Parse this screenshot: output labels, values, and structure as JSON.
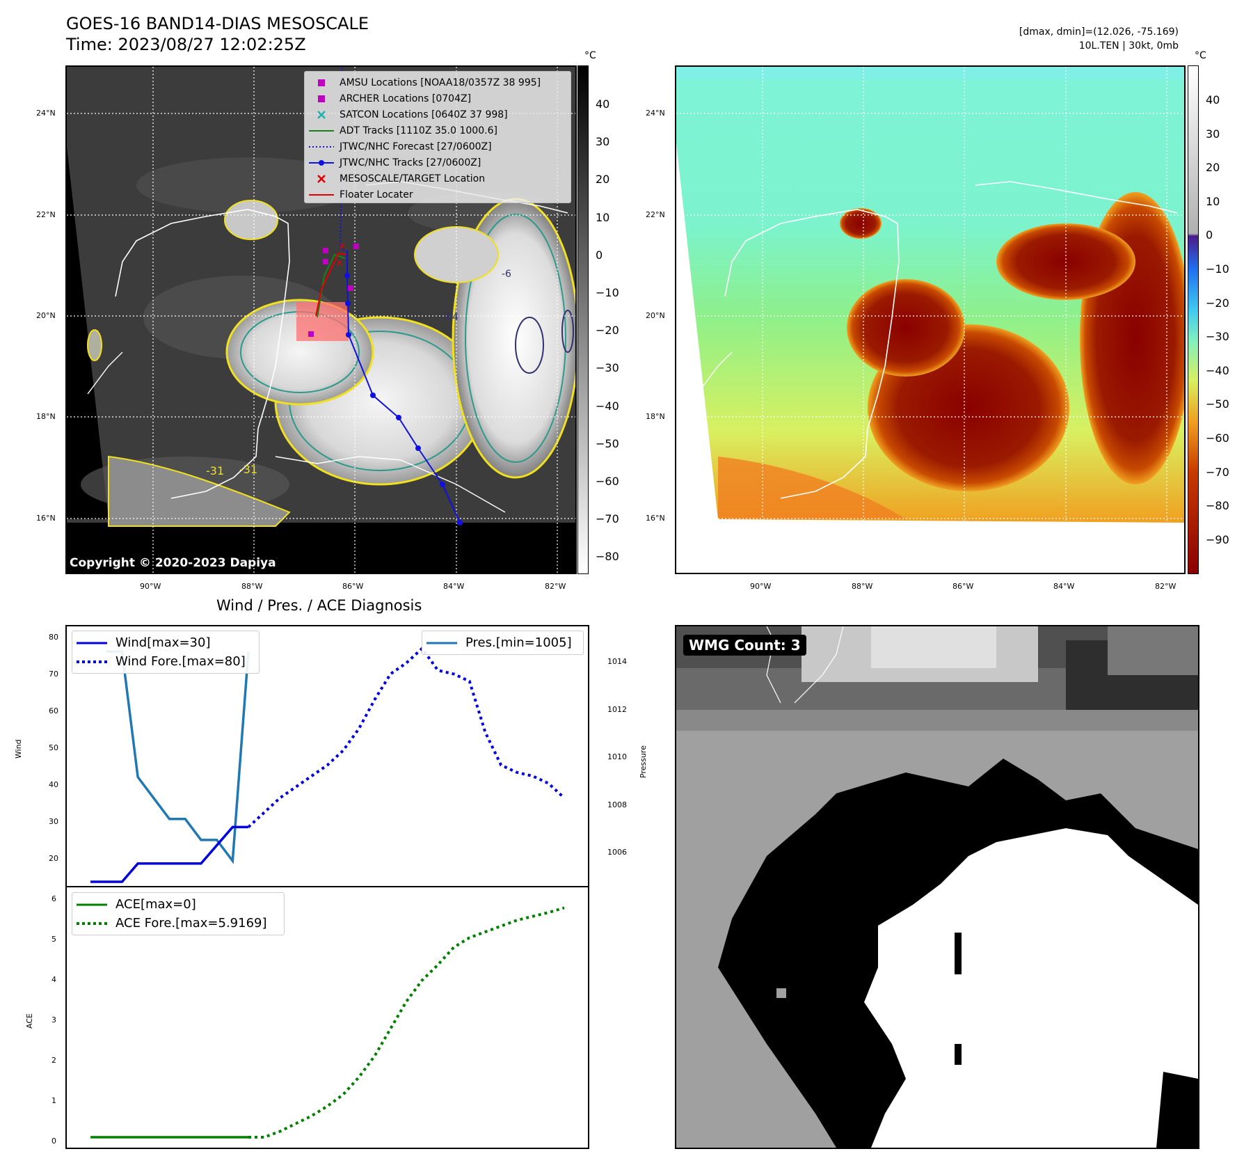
{
  "header": {
    "title": "GOES-16 BAND14-DIAS MESOSCALE",
    "time": "Time: 2023/08/27 12:02:25Z",
    "dmax_dmin": "[dmax, dmin]=(12.026, -75.169)",
    "storm_info": "10L.TEN | 30kt, 0mb"
  },
  "map_axes": {
    "lat_labels": [
      "24°N",
      "22°N",
      "20°N",
      "18°N",
      "16°N"
    ],
    "lon_labels": [
      "90°W",
      "88°W",
      "86°W",
      "84°W",
      "82°W"
    ]
  },
  "left_map": {
    "copyright": "Copyright © 2020-2023 Dapiya",
    "colorbar_unit": "°C",
    "colorbar_ticks": [
      "40",
      "30",
      "20",
      "10",
      "0",
      "−10",
      "−20",
      "−30",
      "−40",
      "−50",
      "−60",
      "−70",
      "−80"
    ],
    "contour_labels": [
      "-31",
      "-31",
      "-64",
      "-6"
    ],
    "legend": [
      {
        "label": "AMSU Locations [NOAA18/0357Z 38 995]",
        "marker": "square",
        "color": "#c000c0"
      },
      {
        "label": "ARCHER Locations [0704Z]",
        "marker": "square",
        "color": "#c000c0"
      },
      {
        "label": "SATCON Locations [0640Z 37 998]",
        "marker": "x",
        "color": "#20b0b0"
      },
      {
        "label": "ADT Tracks [1110Z 35.0 1000.6]",
        "marker": "line",
        "color": "#1a7f1a"
      },
      {
        "label": "JTWC/NHC Forecast [27/0600Z]",
        "marker": "dotted",
        "color": "#1010e0"
      },
      {
        "label": "JTWC/NHC Tracks [27/0600Z]",
        "marker": "line-dot",
        "color": "#1010e0"
      },
      {
        "label": "MESOSCALE/TARGET Location",
        "marker": "x",
        "color": "#e00000"
      },
      {
        "label": "Floater Locater",
        "marker": "line",
        "color": "#e00000"
      }
    ]
  },
  "right_map": {
    "colorbar_unit": "°C",
    "colorbar_ticks": [
      "40",
      "30",
      "20",
      "10",
      "0",
      "−10",
      "−20",
      "−30",
      "−40",
      "−50",
      "−60",
      "−70",
      "−80",
      "−90"
    ]
  },
  "wind_panel": {
    "title": "Wind / Pres. / ACE Diagnosis",
    "ylabel_left": "Wind",
    "ylabel_right": "Pressure",
    "wind_ticks": [
      "80",
      "70",
      "60",
      "50",
      "40",
      "30",
      "20"
    ],
    "pres_ticks": [
      "1014",
      "1012",
      "1010",
      "1008",
      "1006"
    ],
    "legend_left": [
      {
        "label": "Wind[max=30]",
        "style": "solid",
        "color": "#0000e0"
      },
      {
        "label": "Wind Fore.[max=80]",
        "style": "dotted",
        "color": "#0000e0"
      }
    ],
    "legend_right": [
      {
        "label": "Pres.[min=1005]",
        "style": "solid",
        "color": "#1f77b4"
      }
    ]
  },
  "ace_panel": {
    "ylabel": "ACE",
    "ace_ticks": [
      "6",
      "5",
      "4",
      "3",
      "2",
      "1",
      "0"
    ],
    "legend": [
      {
        "label": "ACE[max=0]",
        "style": "solid",
        "color": "#007f00"
      },
      {
        "label": "ACE Fore.[max=5.9169]",
        "style": "dotted",
        "color": "#007f00"
      }
    ]
  },
  "wmg_panel": {
    "badge": "WMG Count: 3"
  },
  "chart_data": [
    {
      "type": "line",
      "name": "Wind / Pres. / ACE Diagnosis — wind",
      "x": [
        0,
        1,
        2,
        3,
        4,
        5,
        6,
        7,
        8,
        9,
        10,
        11,
        12,
        13,
        14,
        15,
        16,
        17,
        18,
        19,
        20,
        21,
        22,
        23,
        24,
        25,
        26,
        27,
        28,
        29,
        30
      ],
      "series": [
        {
          "name": "Wind[max=30]",
          "style": "solid",
          "x": [
            0,
            2,
            3,
            7,
            9,
            10
          ],
          "values": [
            15,
            15,
            20,
            20,
            30,
            30
          ]
        },
        {
          "name": "Wind Fore.[max=80]",
          "style": "dotted",
          "x": [
            10,
            11,
            12,
            13,
            14,
            15,
            16,
            17,
            18,
            19,
            20,
            21,
            22,
            23,
            24,
            25,
            26,
            27,
            28,
            29,
            30
          ],
          "values": [
            30,
            34,
            38,
            41,
            44,
            47,
            51,
            57,
            65,
            72,
            75,
            79,
            73,
            72,
            70,
            56,
            47,
            45,
            44,
            42,
            38
          ]
        }
      ],
      "ylim": [
        15,
        82
      ]
    },
    {
      "type": "line",
      "name": "Pressure",
      "series": [
        {
          "name": "Pres.[min=1005]",
          "style": "solid",
          "x": [
            1,
            2,
            3,
            4,
            5,
            6,
            7,
            8,
            9,
            10
          ],
          "values": [
            1015,
            1015,
            1009,
            1008,
            1007,
            1007,
            1006,
            1006,
            1005,
            1015
          ]
        }
      ],
      "ylim": [
        4.0,
        15.5
      ]
    },
    {
      "type": "line",
      "name": "ACE",
      "series": [
        {
          "name": "ACE[max=0]",
          "style": "solid",
          "x": [
            0,
            10
          ],
          "values": [
            0,
            0
          ]
        },
        {
          "name": "ACE Fore.[max=5.9169]",
          "style": "dotted",
          "x": [
            10,
            11,
            12,
            13,
            14,
            15,
            16,
            17,
            18,
            19,
            20,
            21,
            22,
            23,
            24,
            25,
            26,
            27,
            28,
            29,
            30
          ],
          "values": [
            0,
            0.0,
            0.15,
            0.35,
            0.55,
            0.8,
            1.1,
            1.55,
            2.1,
            2.8,
            3.5,
            4.05,
            4.45,
            4.9,
            5.15,
            5.3,
            5.45,
            5.6,
            5.7,
            5.8,
            5.92
          ]
        }
      ],
      "ylim": [
        -0.1,
        6.1
      ]
    }
  ]
}
